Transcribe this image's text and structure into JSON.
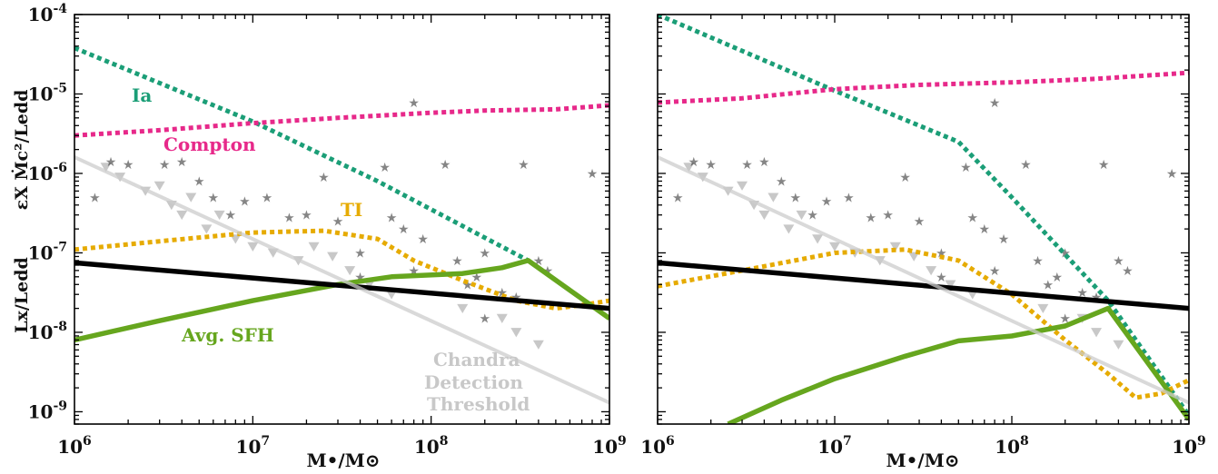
{
  "chart_data": [
    {
      "type": "line",
      "panel": "left",
      "xscale": "log",
      "yscale": "log",
      "xlim": [
        1000000,
        1000000000
      ],
      "ylim": [
        7e-10,
        0.0001
      ],
      "xlabel": "M•/M⊙",
      "ylabel_top": "εX Ṁc²/Ledd",
      "ylabel_bottom": "Lx/Ledd",
      "x_ticks": [
        {
          "value": 1000000,
          "base": "10",
          "exp": "6"
        },
        {
          "value": 10000000,
          "base": "10",
          "exp": "7"
        },
        {
          "value": 100000000,
          "base": "10",
          "exp": "8"
        },
        {
          "value": 1000000000,
          "base": "10",
          "exp": "9"
        }
      ],
      "y_ticks": [
        {
          "value": 0.0001,
          "base": "10",
          "exp": "-4"
        },
        {
          "value": 1e-05,
          "base": "10",
          "exp": "-5"
        },
        {
          "value": 1e-06,
          "base": "10",
          "exp": "-6"
        },
        {
          "value": 1e-07,
          "base": "10",
          "exp": "-7"
        },
        {
          "value": 1e-08,
          "base": "10",
          "exp": "-8"
        },
        {
          "value": 1e-09,
          "base": "10",
          "exp": "-9"
        }
      ],
      "series": [
        {
          "name": "Ia",
          "color": "#1b9e77",
          "style": "dotted",
          "x": [
            1000000,
            10000000,
            50000000,
            350000000,
            1000000000
          ],
          "y": [
            3.8e-05,
            4.5e-06,
            8e-07,
            8e-08,
            1.5e-08
          ]
        },
        {
          "name": "Compton",
          "color": "#e7298a",
          "style": "dotted",
          "x": [
            1000000,
            3000000,
            10000000,
            30000000,
            100000000,
            200000000,
            500000000,
            1000000000
          ],
          "y": [
            3e-06,
            3.5e-06,
            4.3e-06,
            5e-06,
            5.8e-06,
            6.2e-06,
            6.4e-06,
            7.2e-06
          ]
        },
        {
          "name": "TI",
          "color": "#e6ab02",
          "style": "dotted",
          "x": [
            1000000,
            3000000,
            10000000,
            25000000,
            50000000,
            80000000,
            150000000,
            300000000,
            500000000,
            700000000,
            1000000000
          ],
          "y": [
            1.1e-07,
            1.4e-07,
            1.8e-07,
            1.9e-07,
            1.5e-07,
            8e-08,
            4.5e-08,
            2.5e-08,
            2e-08,
            2.2e-08,
            2.5e-08
          ]
        },
        {
          "name": "Avg. SFH",
          "color": "#66a61e",
          "style": "solid",
          "x": [
            1000000,
            3000000,
            10000000,
            30000000,
            60000000,
            150000000,
            250000000,
            350000000,
            1000000000
          ],
          "y": [
            8e-09,
            1.4e-08,
            2.5e-08,
            4e-08,
            5e-08,
            5.5e-08,
            6.5e-08,
            8e-08,
            1.5e-08
          ]
        },
        {
          "name": "",
          "color": "#000000",
          "style": "solid",
          "x": [
            1000000,
            1000000000
          ],
          "y": [
            7.5e-08,
            2e-08
          ]
        },
        {
          "name": "Chandra Detection Threshold",
          "color": "#cccccc",
          "style": "solid",
          "x": [
            1000000,
            1000000000
          ],
          "y": [
            1.6e-06,
            1.3e-09
          ]
        }
      ],
      "labels": {
        "Ia": "Ia",
        "Compton": "Compton",
        "TI": "TI",
        "SFH": "Avg. SFH",
        "chandra_1": "Chandra",
        "chandra_2": "Detection",
        "chandra_3": "Threshold"
      },
      "detections": [
        [
          1300000,
          5e-07
        ],
        [
          1600000,
          1.4e-06
        ],
        [
          2000000,
          1.3e-06
        ],
        [
          3200000,
          1.3e-06
        ],
        [
          4000000,
          1.4e-06
        ],
        [
          5000000,
          8e-07
        ],
        [
          6000000,
          5e-07
        ],
        [
          7500000,
          3e-07
        ],
        [
          9000000,
          4.5e-07
        ],
        [
          12000000,
          5e-07
        ],
        [
          16000000,
          2.8e-07
        ],
        [
          20000000,
          3e-07
        ],
        [
          25000000,
          9e-07
        ],
        [
          30000000,
          2.5e-07
        ],
        [
          40000000,
          1e-07
        ],
        [
          40000000,
          5e-08
        ],
        [
          55000000,
          1.2e-06
        ],
        [
          60000000,
          2.8e-07
        ],
        [
          70000000,
          2e-07
        ],
        [
          80000000,
          7.8e-06
        ],
        [
          80000000,
          6e-08
        ],
        [
          90000000,
          1.5e-07
        ],
        [
          120000000,
          1.3e-06
        ],
        [
          140000000,
          8e-08
        ],
        [
          160000000,
          4e-08
        ],
        [
          180000000,
          5e-08
        ],
        [
          200000000,
          1e-07
        ],
        [
          200000000,
          1.5e-08
        ],
        [
          250000000,
          3.2e-08
        ],
        [
          300000000,
          2.8e-08
        ],
        [
          330000000,
          1.3e-06
        ],
        [
          400000000,
          8e-08
        ],
        [
          450000000,
          6e-08
        ],
        [
          800000000,
          1e-06
        ]
      ],
      "upper_limits": [
        [
          1500000,
          1.2e-06
        ],
        [
          1800000,
          9e-07
        ],
        [
          2500000,
          6e-07
        ],
        [
          3000000,
          7e-07
        ],
        [
          3500000,
          4e-07
        ],
        [
          4000000,
          3e-07
        ],
        [
          4500000,
          5e-07
        ],
        [
          5500000,
          2e-07
        ],
        [
          6500000,
          3e-07
        ],
        [
          8000000,
          1.5e-07
        ],
        [
          10000000,
          1.2e-07
        ],
        [
          13000000,
          1e-07
        ],
        [
          18000000,
          8e-08
        ],
        [
          22000000,
          1.2e-07
        ],
        [
          28000000,
          9e-08
        ],
        [
          35000000,
          6e-08
        ],
        [
          45000000,
          4e-08
        ],
        [
          60000000,
          3e-08
        ],
        [
          150000000,
          2e-08
        ],
        [
          250000000,
          1.5e-08
        ],
        [
          300000000,
          1e-08
        ],
        [
          400000000,
          7e-09
        ]
      ]
    },
    {
      "type": "line",
      "panel": "right",
      "xscale": "log",
      "yscale": "log",
      "xlim": [
        1000000,
        1000000000
      ],
      "ylim": [
        7e-10,
        0.0001
      ],
      "xlabel": "M•/M⊙",
      "x_ticks": [
        {
          "value": 1000000,
          "base": "10",
          "exp": "6"
        },
        {
          "value": 10000000,
          "base": "10",
          "exp": "7"
        },
        {
          "value": 100000000,
          "base": "10",
          "exp": "8"
        },
        {
          "value": 1000000000,
          "base": "10",
          "exp": "9"
        }
      ],
      "series": [
        {
          "name": "Ia",
          "color": "#1b9e77",
          "style": "dotted",
          "x": [
            1000000,
            10000000,
            50000000,
            100000000,
            350000000,
            1000000000
          ],
          "y": [
            0.0001,
            1.1e-05,
            2.5e-06,
            5e-07,
            2.5e-08,
            9e-10
          ]
        },
        {
          "name": "Compton",
          "color": "#e7298a",
          "style": "dotted",
          "x": [
            1000000,
            3000000,
            10000000,
            30000000,
            100000000,
            300000000,
            1000000000
          ],
          "y": [
            7.8e-06,
            8.8e-06,
            1.15e-05,
            1.3e-05,
            1.4e-05,
            1.55e-05,
            1.85e-05
          ]
        },
        {
          "name": "TI",
          "color": "#e6ab02",
          "style": "dotted",
          "x": [
            1000000,
            3000000,
            10000000,
            25000000,
            50000000,
            100000000,
            200000000,
            350000000,
            500000000,
            700000000,
            1000000000
          ],
          "y": [
            3.8e-08,
            6e-08,
            1e-07,
            1.1e-07,
            8e-08,
            3e-08,
            8e-09,
            3e-09,
            1.5e-09,
            1.7e-09,
            2.5e-09
          ]
        },
        {
          "name": "Avg. SFH",
          "color": "#66a61e",
          "style": "solid",
          "x": [
            2500000,
            5000000,
            10000000,
            25000000,
            50000000,
            100000000,
            200000000,
            350000000,
            1000000000
          ],
          "y": [
            7e-10,
            1.4e-09,
            2.6e-09,
            5e-09,
            7.8e-09,
            9e-09,
            1.2e-08,
            2e-08,
            8e-10
          ]
        },
        {
          "name": "",
          "color": "#000000",
          "style": "solid",
          "x": [
            1000000,
            1000000000
          ],
          "y": [
            7.5e-08,
            2e-08
          ]
        },
        {
          "name": "",
          "color": "#cccccc",
          "style": "solid",
          "x": [
            1000000,
            1000000000
          ],
          "y": [
            1.6e-06,
            1.3e-09
          ]
        }
      ],
      "detections": [
        [
          1300000,
          5e-07
        ],
        [
          1600000,
          1.4e-06
        ],
        [
          2000000,
          1.3e-06
        ],
        [
          3200000,
          1.3e-06
        ],
        [
          4000000,
          1.4e-06
        ],
        [
          5000000,
          8e-07
        ],
        [
          6000000,
          5e-07
        ],
        [
          7500000,
          3e-07
        ],
        [
          9000000,
          4.5e-07
        ],
        [
          12000000,
          5e-07
        ],
        [
          16000000,
          2.8e-07
        ],
        [
          20000000,
          3e-07
        ],
        [
          25000000,
          9e-07
        ],
        [
          30000000,
          2.5e-07
        ],
        [
          40000000,
          1e-07
        ],
        [
          40000000,
          5e-08
        ],
        [
          55000000,
          1.2e-06
        ],
        [
          60000000,
          2.8e-07
        ],
        [
          70000000,
          2e-07
        ],
        [
          80000000,
          7.8e-06
        ],
        [
          80000000,
          6e-08
        ],
        [
          90000000,
          1.5e-07
        ],
        [
          120000000,
          1.3e-06
        ],
        [
          140000000,
          8e-08
        ],
        [
          160000000,
          4e-08
        ],
        [
          180000000,
          5e-08
        ],
        [
          200000000,
          1e-07
        ],
        [
          200000000,
          1.5e-08
        ],
        [
          250000000,
          3.2e-08
        ],
        [
          300000000,
          2.8e-08
        ],
        [
          330000000,
          1.3e-06
        ],
        [
          400000000,
          8e-08
        ],
        [
          450000000,
          6e-08
        ],
        [
          800000000,
          1e-06
        ]
      ],
      "upper_limits": [
        [
          1500000,
          1.2e-06
        ],
        [
          1800000,
          9e-07
        ],
        [
          2500000,
          6e-07
        ],
        [
          3000000,
          7e-07
        ],
        [
          3500000,
          4e-07
        ],
        [
          4000000,
          3e-07
        ],
        [
          4500000,
          5e-07
        ],
        [
          5500000,
          2e-07
        ],
        [
          6500000,
          3e-07
        ],
        [
          8000000,
          1.5e-07
        ],
        [
          10000000,
          1.2e-07
        ],
        [
          13000000,
          1e-07
        ],
        [
          18000000,
          8e-08
        ],
        [
          22000000,
          1.2e-07
        ],
        [
          28000000,
          9e-08
        ],
        [
          35000000,
          6e-08
        ],
        [
          45000000,
          4e-08
        ],
        [
          60000000,
          3e-08
        ],
        [
          150000000,
          2e-08
        ],
        [
          250000000,
          1.5e-08
        ],
        [
          300000000,
          1e-08
        ],
        [
          400000000,
          7e-09
        ]
      ]
    }
  ]
}
